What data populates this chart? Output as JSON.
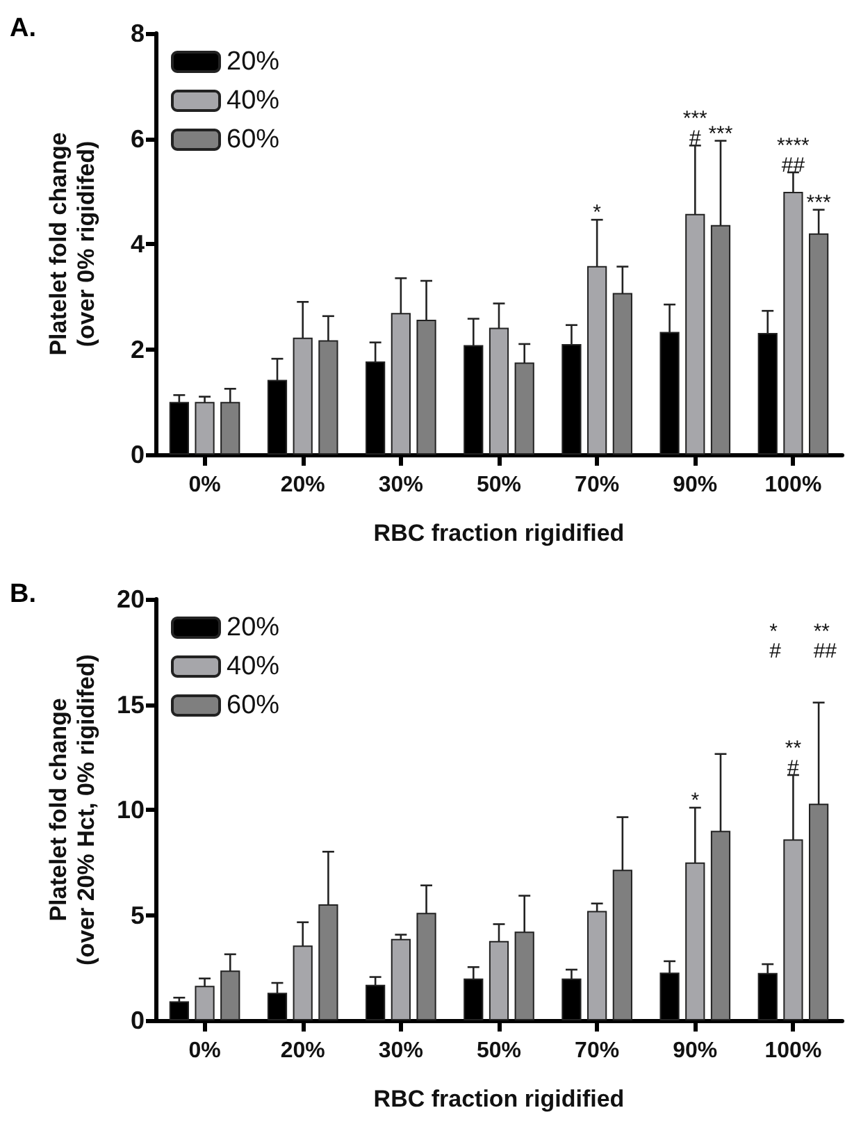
{
  "chart_data": [
    {
      "type": "bar",
      "title": "A.",
      "xlabel": "RBC fraction rigidified",
      "ylabel": "Platelet fold change\n(over 0% rigidifed)",
      "categories": [
        "0%",
        "20%",
        "30%",
        "50%",
        "70%",
        "90%",
        "100%"
      ],
      "series": [
        {
          "name": "20%",
          "color": "#000000",
          "values": [
            1.0,
            1.42,
            1.77,
            2.08,
            2.1,
            2.33,
            2.31
          ],
          "errors": [
            0.13,
            0.4,
            0.36,
            0.5,
            0.36,
            0.52,
            0.42
          ]
        },
        {
          "name": "40%",
          "color": "#a6a6aa",
          "values": [
            1.0,
            2.22,
            2.69,
            2.41,
            3.58,
            4.57,
            4.99
          ],
          "errors": [
            0.1,
            0.68,
            0.66,
            0.46,
            0.88,
            1.3,
            0.37
          ]
        },
        {
          "name": "60%",
          "color": "#7f7f7f",
          "values": [
            1.0,
            2.17,
            2.56,
            1.75,
            3.07,
            4.36,
            4.2
          ],
          "errors": [
            0.25,
            0.46,
            0.74,
            0.35,
            0.5,
            1.6,
            0.45
          ]
        }
      ],
      "ylim": [
        0,
        8
      ],
      "yticks": [
        0,
        2,
        4,
        6,
        8
      ],
      "grid": false,
      "legend": "top left",
      "annotations": [
        {
          "text": "*",
          "x": "70%",
          "y": 4.46
        },
        {
          "text": "***\n#",
          "x": "90%",
          "y": 5.87
        },
        {
          "text": "***",
          "x": "90%",
          "y": 5.96
        },
        {
          "text": "****\n##",
          "x": "100%",
          "y": 5.36
        },
        {
          "text": "***",
          "x": "100%",
          "y": 4.65
        }
      ]
    },
    {
      "type": "bar",
      "title": "B.",
      "xlabel": "RBC fraction rigidified",
      "ylabel": "Platelet fold change\n(over 20% Hct, 0% rigidifed)",
      "categories": [
        "0%",
        "20%",
        "30%",
        "50%",
        "70%",
        "90%",
        "100%"
      ],
      "series": [
        {
          "name": "20%",
          "color": "#000000",
          "values": [
            0.91,
            1.31,
            1.69,
            1.99,
            1.99,
            2.27,
            2.25
          ],
          "errors": [
            0.17,
            0.47,
            0.37,
            0.54,
            0.42,
            0.54,
            0.42
          ]
        },
        {
          "name": "40%",
          "color": "#a6a6aa",
          "values": [
            1.64,
            3.56,
            3.87,
            3.77,
            5.2,
            7.5,
            8.6
          ],
          "errors": [
            0.35,
            1.1,
            0.2,
            0.8,
            0.35,
            2.6,
            3.05
          ]
        },
        {
          "name": "60%",
          "color": "#7f7f7f",
          "values": [
            2.37,
            5.51,
            5.11,
            4.22,
            7.15,
            9.0,
            10.29
          ],
          "errors": [
            0.77,
            2.5,
            1.3,
            1.7,
            2.5,
            3.65,
            4.8
          ]
        }
      ],
      "ylim": [
        0,
        20
      ],
      "yticks": [
        0,
        5,
        10,
        15,
        20
      ],
      "grid": false,
      "legend": "top left",
      "annotations": [
        {
          "text": "*",
          "x": "90%",
          "y": 10.1
        },
        "*\n#",
        {
          "text": "**\n#",
          "x": "100%",
          "y": 11.65
        },
        "**\n##"
      ]
    }
  ]
}
